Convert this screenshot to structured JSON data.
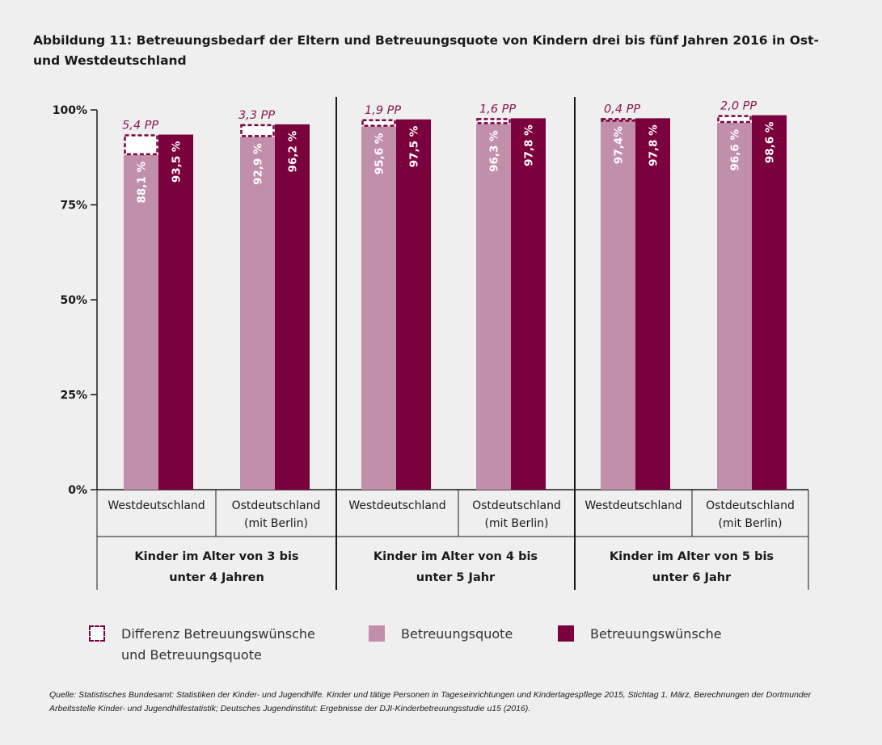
{
  "title": "Abbildung 11: Betreuungsbedarf der Eltern und Betreuungsquote von Kindern drei bis fünf Jahren 2016 in Ost- und Westdeutschland",
  "legend": [
    {
      "label": "Differenz Betreuungswünsche und Betreuungsquote",
      "type": "dashed"
    },
    {
      "label": "Betreuungsquote",
      "type": "light"
    },
    {
      "label": "Betreuungswünsche",
      "type": "dark"
    }
  ],
  "source": "Quelle: Statistisches Bundesamt: Statistiken der Kinder- und Jugendhilfe. Kinder und tätige Personen in Tageseinrichtungen und Kindertagespflege 2015, Stichtag 1. März, Berechnungen der Dortmunder Arbeitsstelle Kinder- und Jugendhilfestatistik; Deutsches Jugendinstitut: Ergebnisse der DJI-Kinderbetreuungsstudie u15 (2016).",
  "colors": {
    "light": "#c28fab",
    "dark": "#7b003e",
    "annotation": "#8a1a52",
    "background": "#efefef"
  },
  "chart_data": {
    "type": "bar",
    "ylim": [
      0,
      100
    ],
    "yticks": [
      "0%",
      "25%",
      "50%",
      "75%",
      "100%"
    ],
    "ytick_values": [
      0,
      25,
      50,
      75,
      100
    ],
    "grid": false,
    "legend_position": "bottom",
    "series": [
      {
        "name": "Betreuungsquote",
        "values": [
          88.1,
          92.9,
          95.6,
          96.3,
          97.4,
          96.6
        ],
        "labels": [
          "88,1 %",
          "92,9 %",
          "95,6 %",
          "96,3 %",
          "97,4%",
          "96,6 %"
        ]
      },
      {
        "name": "Betreuungswünsche",
        "values": [
          93.5,
          96.2,
          97.5,
          97.8,
          97.8,
          98.6
        ],
        "labels": [
          "93,5 %",
          "96,2 %",
          "97,5 %",
          "97,8 %",
          "97,8 %",
          "98,6 %"
        ]
      },
      {
        "name": "Differenz Betreuungswünsche und Betreuungsquote",
        "values": [
          5.4,
          3.3,
          1.9,
          1.6,
          0.4,
          2.0
        ],
        "labels": [
          "5,4 PP",
          "3,3 PP",
          "1,9 PP",
          "1,6 PP",
          "0,4 PP",
          "2,0 PP"
        ]
      }
    ],
    "groups": [
      {
        "label": "Kinder im Alter von 3 bis unter 4 Jahren",
        "label_lines": [
          "Kinder im Alter von 3 bis",
          "unter 4 Jahren"
        ],
        "categories": [
          [
            "Westdeutschland"
          ],
          [
            "Ostdeutschland",
            "(mit Berlin)"
          ]
        ]
      },
      {
        "label": "Kinder im Alter von 4 bis unter 5 Jahr",
        "label_lines": [
          "Kinder im Alter von 4 bis",
          "unter  5 Jahr"
        ],
        "categories": [
          [
            "Westdeutschland"
          ],
          [
            "Ostdeutschland",
            "(mit Berlin)"
          ]
        ]
      },
      {
        "label": "Kinder im Alter von 5 bis unter 6 Jahr",
        "label_lines": [
          "Kinder im Alter von 5 bis",
          "unter  6 Jahr"
        ],
        "categories": [
          [
            "Westdeutschland"
          ],
          [
            "Ostdeutschland",
            "(mit Berlin)"
          ]
        ]
      }
    ]
  }
}
